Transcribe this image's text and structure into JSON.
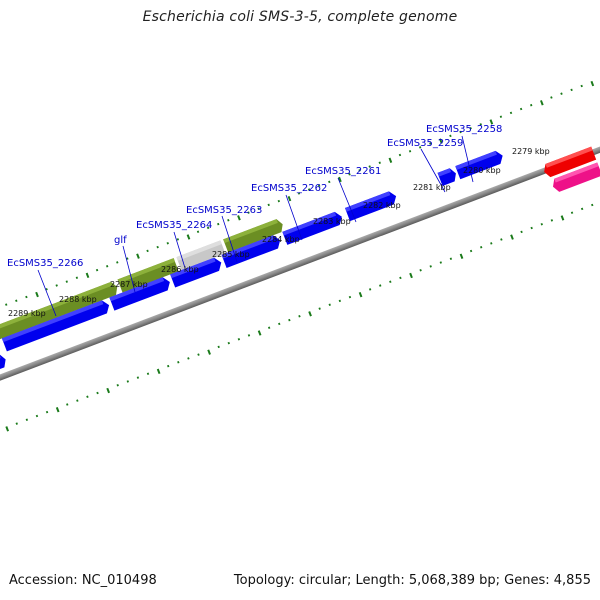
{
  "title": "Escherichia coli SMS-3-5, complete genome",
  "footer": {
    "accession": "Accession: NC_010498",
    "summary": "Topology: circular; Length: 5,068,389 bp; Genes: 4,855"
  },
  "gene_labels": [
    "EcSMS35_2266",
    "glf",
    "EcSMS35_2264",
    "EcSMS35_2263",
    "EcSMS35_2262",
    "EcSMS35_2261",
    "EcSMS35_2259",
    "EcSMS35_2258"
  ],
  "kbp_labels": [
    "2289 kbp",
    "2288 kbp",
    "2287 kbp",
    "2286 kbp",
    "2285 kbp",
    "2284 kbp",
    "2283 kbp",
    "2282 kbp",
    "2281 kbp",
    "2280 kbp",
    "2279 kbp"
  ],
  "colors": {
    "cds": "#0000ee",
    "operon": "#6b8e23",
    "operon_gap": "#c8c8c8",
    "cyan_feature": "#00c8c8",
    "red_feature": "#ee0000",
    "pink_feature": "#ee1188",
    "backbone": "#808080",
    "ticks": "#1a7a1a",
    "label_text": "#0000cc",
    "leader": "#0000cc"
  }
}
